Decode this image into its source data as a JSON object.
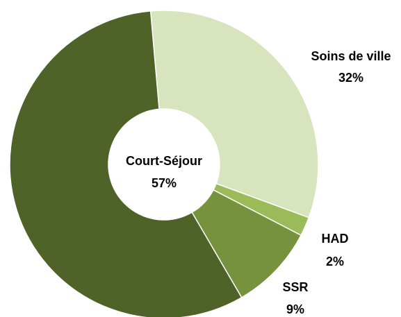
{
  "chart_data": {
    "type": "donut",
    "categories": [
      "Soins de ville",
      "HAD",
      "SSR",
      "Court-Séjour"
    ],
    "values": [
      32,
      2,
      9,
      57
    ],
    "value_labels": [
      "32%",
      "2%",
      "9%",
      "57%"
    ],
    "colors": [
      "#d7e4bd",
      "#9bbb59",
      "#76923c",
      "#4f6228"
    ]
  }
}
